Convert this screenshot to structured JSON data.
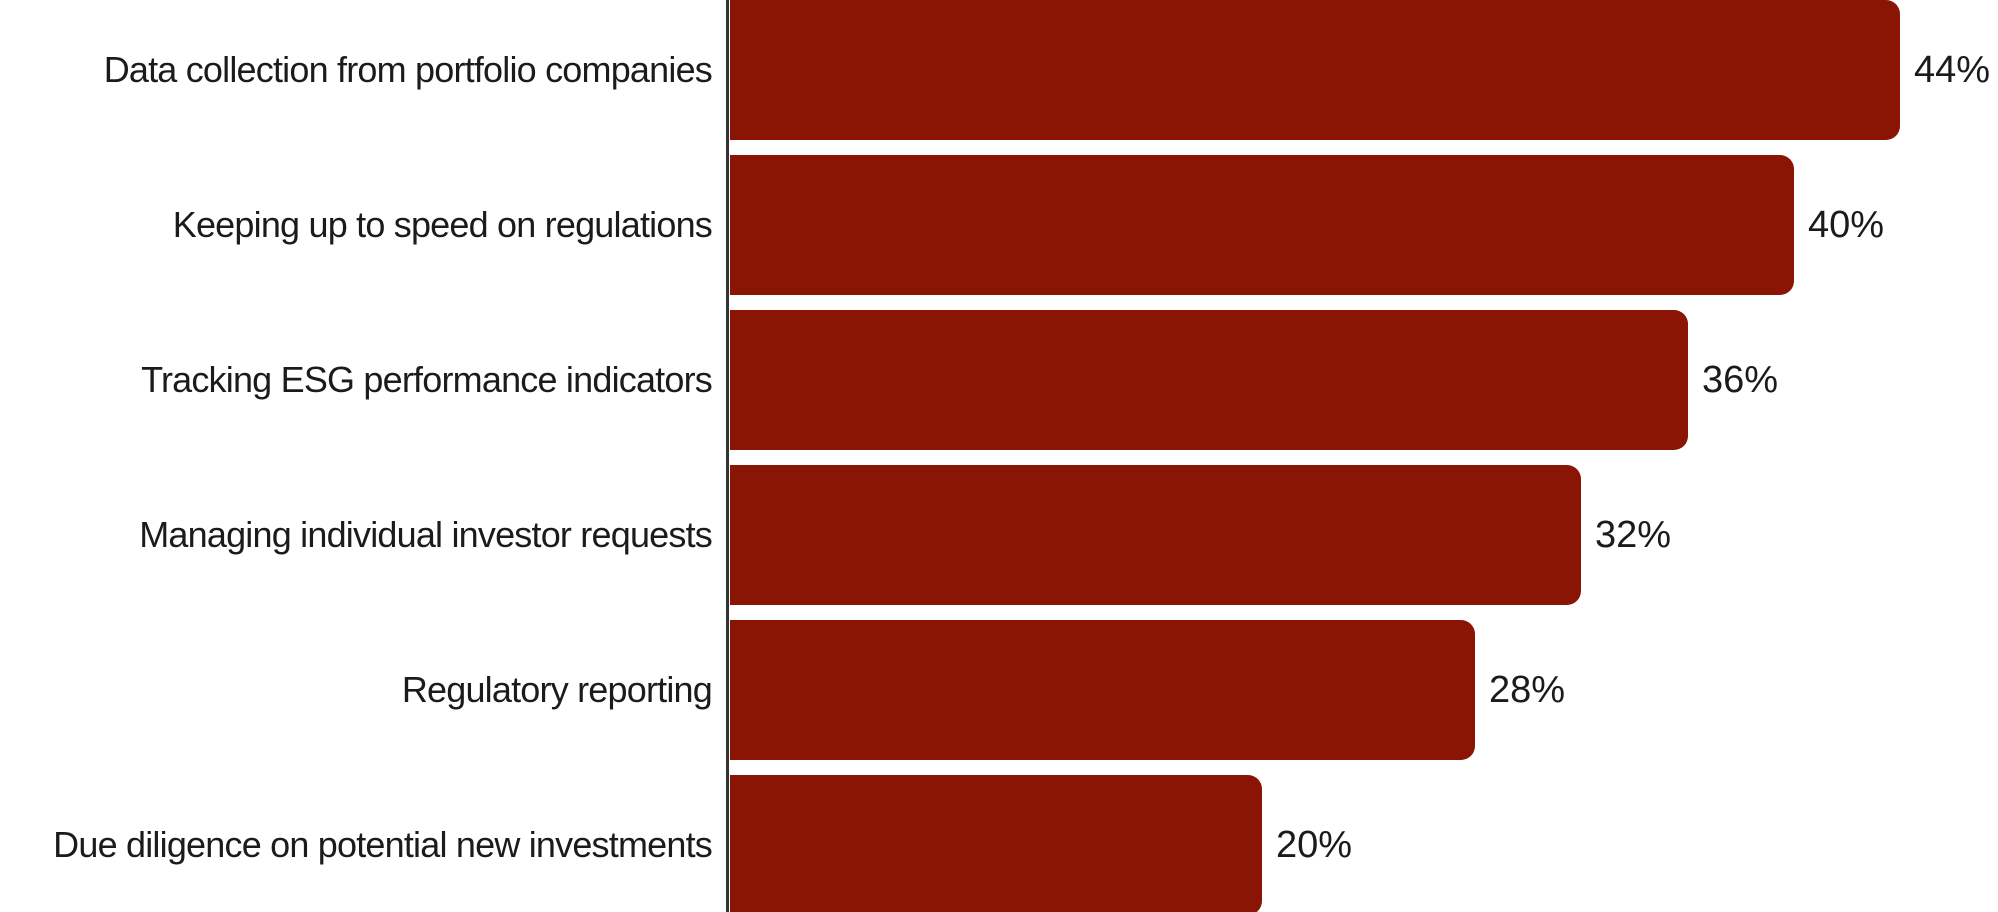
{
  "chart_data": {
    "type": "bar",
    "orientation": "horizontal",
    "categories": [
      "Data collection from portfolio companies",
      "Keeping up to speed on regulations",
      "Tracking ESG performance indicators",
      "Managing individual investor requests",
      "Regulatory reporting",
      "Due diligence on potential new investments"
    ],
    "values": [
      44,
      40,
      36,
      32,
      28,
      20
    ],
    "value_labels": [
      "44%",
      "40%",
      "36%",
      "32%",
      "28%",
      "20%"
    ],
    "xlim": [
      0,
      47.5
    ],
    "grid": false,
    "legend": false,
    "bar_color": "#8B1505",
    "axis_line_color": "#333333",
    "text_color": "#1b1b1b",
    "background_color": "#ffffff"
  }
}
